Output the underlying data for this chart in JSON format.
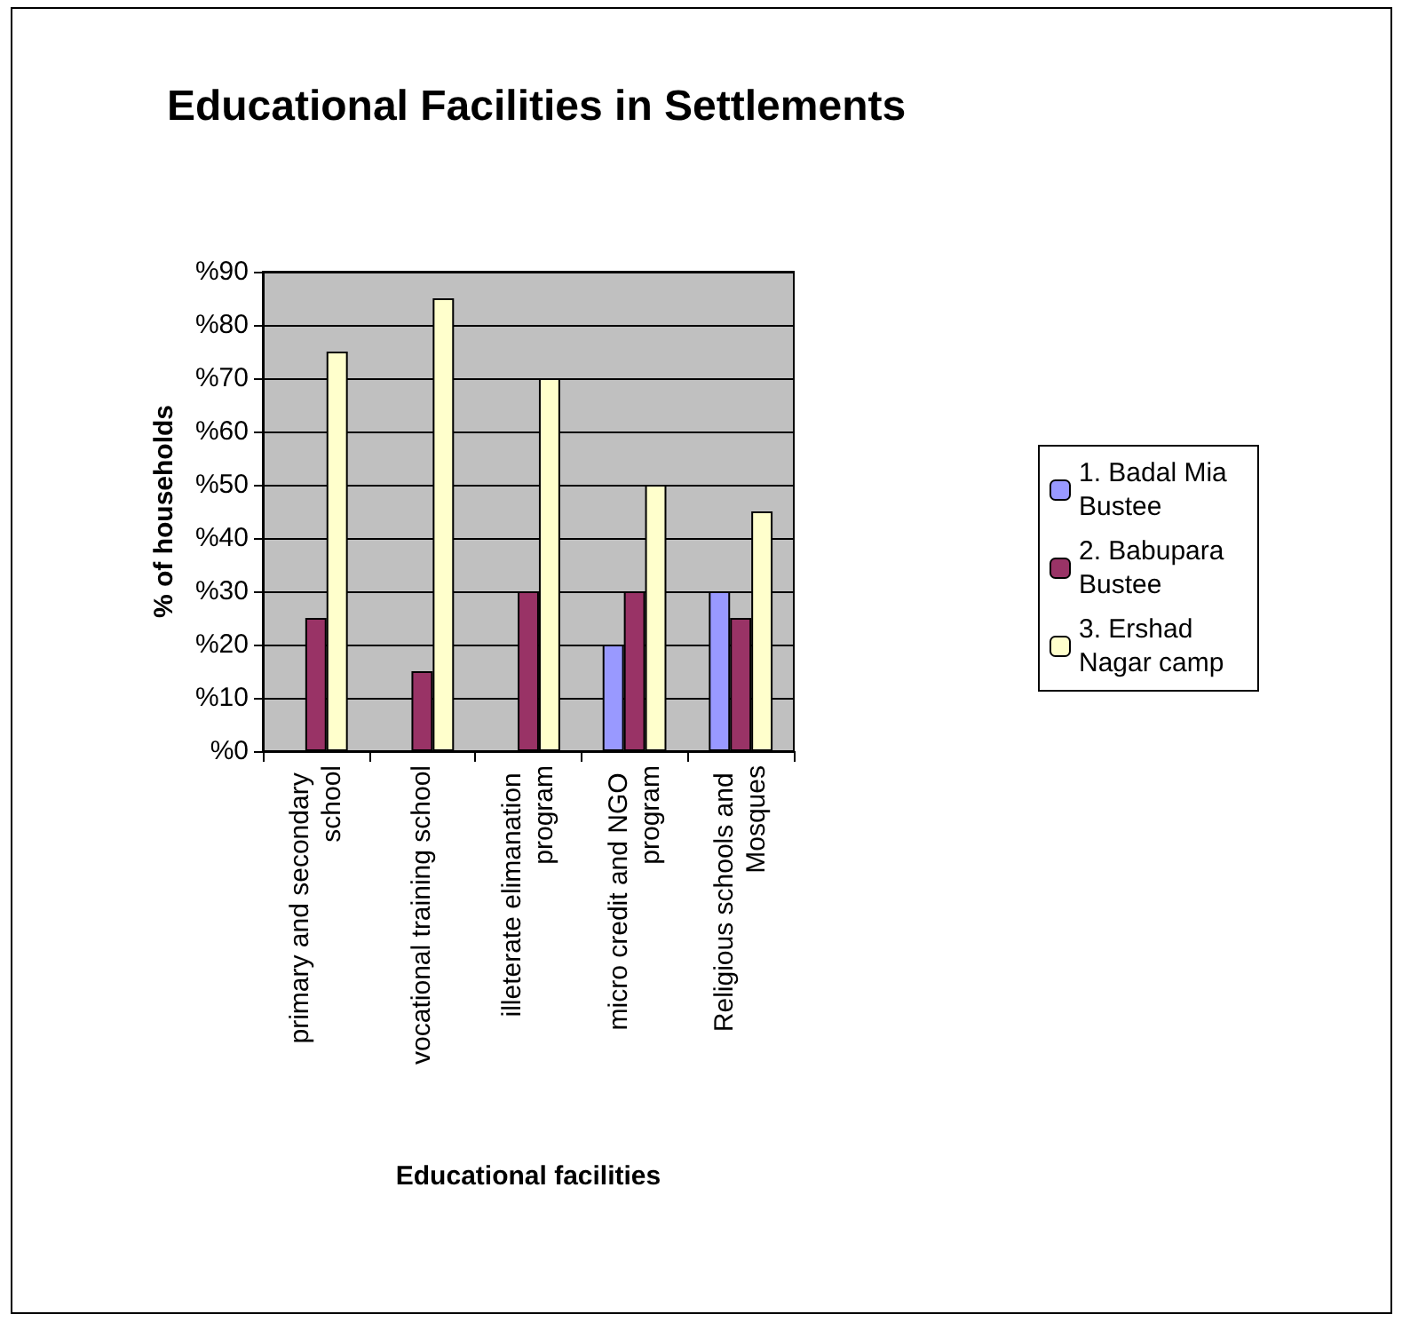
{
  "chart_data": {
    "type": "bar",
    "title": "Educational Facilities in Settlements",
    "xlabel": "Educational facilities",
    "ylabel": "% of households",
    "categories": [
      "primary and secondary school",
      "vocational training school",
      "illeterate elimanation program",
      "micro credit and NGO program",
      "Religious schools and Mosques"
    ],
    "series": [
      {
        "name": "1. Badal Mia Bustee",
        "color": "#9999ff",
        "values": [
          0,
          0,
          0,
          20,
          30
        ]
      },
      {
        "name": "2. Babupara Bustee",
        "color": "#993366",
        "values": [
          25,
          15,
          30,
          30,
          25
        ]
      },
      {
        "name": "3. Ershad Nagar camp",
        "color": "#ffffcc",
        "values": [
          75,
          85,
          70,
          50,
          45
        ]
      }
    ],
    "ylim": [
      0,
      90
    ],
    "yticks": [
      {
        "value": 0,
        "label": "%0"
      },
      {
        "value": 10,
        "label": "%10"
      },
      {
        "value": 20,
        "label": "%20"
      },
      {
        "value": 30,
        "label": "%30"
      },
      {
        "value": 40,
        "label": "%40"
      },
      {
        "value": 50,
        "label": "%50"
      },
      {
        "value": 60,
        "label": "%60"
      },
      {
        "value": 70,
        "label": "%70"
      },
      {
        "value": 80,
        "label": "%80"
      },
      {
        "value": 90,
        "label": "%90"
      }
    ],
    "grid": "y",
    "legend": "right"
  }
}
